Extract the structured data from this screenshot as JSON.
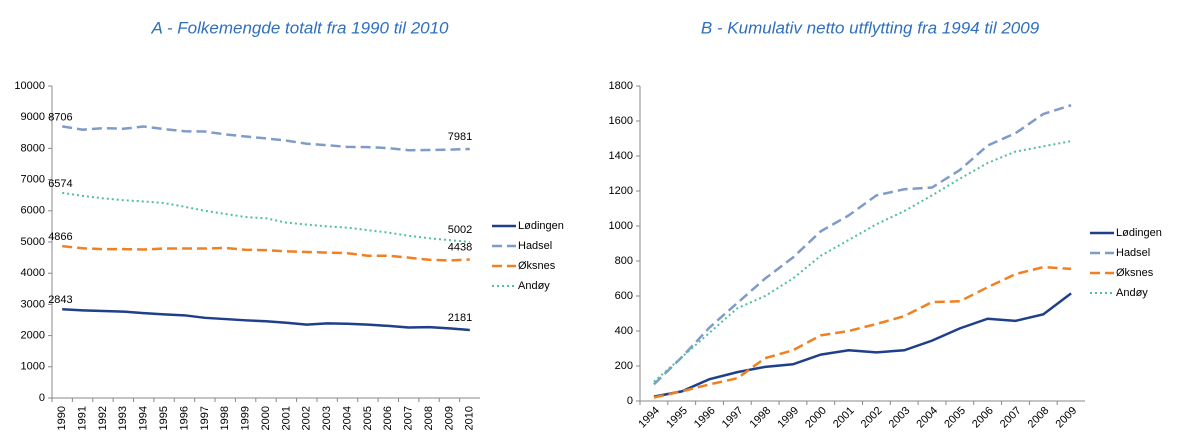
{
  "chart_data": [
    {
      "type": "line",
      "title": "A - Folkemengde totalt fra 1990 til 2010",
      "categories": [
        "1990",
        "1991",
        "1992",
        "1993",
        "1994",
        "1995",
        "1996",
        "1997",
        "1998",
        "1999",
        "2000",
        "2001",
        "2002",
        "2003",
        "2004",
        "2005",
        "2006",
        "2007",
        "2008",
        "2009",
        "2010"
      ],
      "ylim": [
        0,
        10000
      ],
      "yticks": [
        0,
        1000,
        2000,
        3000,
        4000,
        5000,
        6000,
        7000,
        8000,
        9000,
        10000
      ],
      "grid": false,
      "legend": "right",
      "data_labels": "first-last",
      "series": [
        {
          "name": "Lødingen",
          "color": "#1f3f8a",
          "dash": "solid",
          "values": [
            2843,
            2810,
            2790,
            2770,
            2720,
            2680,
            2650,
            2570,
            2530,
            2490,
            2460,
            2410,
            2350,
            2390,
            2380,
            2350,
            2310,
            2260,
            2270,
            2230,
            2181
          ]
        },
        {
          "name": "Hadsel",
          "color": "#7f9cc8",
          "dash": "dash",
          "values": [
            8706,
            8600,
            8650,
            8630,
            8700,
            8620,
            8550,
            8540,
            8450,
            8380,
            8320,
            8250,
            8150,
            8100,
            8050,
            8040,
            8010,
            7940,
            7950,
            7960,
            7981
          ]
        },
        {
          "name": "Øksnes",
          "color": "#f08020",
          "dash": "dash",
          "values": [
            4866,
            4800,
            4770,
            4770,
            4760,
            4790,
            4790,
            4790,
            4810,
            4750,
            4740,
            4700,
            4680,
            4660,
            4640,
            4560,
            4560,
            4500,
            4430,
            4410,
            4438
          ]
        },
        {
          "name": "Andøy",
          "color": "#4fbfa0",
          "dash": "dot",
          "values": [
            6574,
            6480,
            6400,
            6340,
            6300,
            6250,
            6130,
            6000,
            5900,
            5800,
            5760,
            5620,
            5560,
            5500,
            5460,
            5380,
            5300,
            5200,
            5120,
            5060,
            5002
          ]
        }
      ]
    },
    {
      "type": "line",
      "title": "B - Kumulativ netto utflytting fra 1994 til 2009",
      "categories": [
        "1994",
        "1995",
        "1996",
        "1997",
        "1998",
        "1999",
        "2000",
        "2001",
        "2002",
        "2003",
        "2004",
        "2005",
        "2006",
        "2007",
        "2008",
        "2009"
      ],
      "ylim": [
        0,
        1800
      ],
      "yticks": [
        0,
        200,
        400,
        600,
        800,
        1000,
        1200,
        1400,
        1600,
        1800
      ],
      "grid": false,
      "legend": "right",
      "series": [
        {
          "name": "Lødingen",
          "color": "#1f3f8a",
          "dash": "solid",
          "values": [
            25,
            55,
            125,
            165,
            195,
            210,
            265,
            290,
            278,
            290,
            345,
            415,
            470,
            458,
            495,
            615
          ]
        },
        {
          "name": "Hadsel",
          "color": "#7f9cc8",
          "dash": "dash",
          "values": [
            95,
            250,
            420,
            560,
            700,
            820,
            970,
            1060,
            1175,
            1210,
            1220,
            1320,
            1460,
            1530,
            1640,
            1690
          ]
        },
        {
          "name": "Øksnes",
          "color": "#f08020",
          "dash": "dash",
          "values": [
            20,
            55,
            95,
            130,
            245,
            290,
            375,
            400,
            440,
            485,
            565,
            570,
            650,
            725,
            765,
            755
          ]
        },
        {
          "name": "Andøy",
          "color": "#4fbfa0",
          "dash": "dot",
          "values": [
            110,
            250,
            390,
            530,
            600,
            700,
            830,
            920,
            1010,
            1085,
            1175,
            1270,
            1360,
            1425,
            1455,
            1485
          ]
        }
      ]
    }
  ]
}
